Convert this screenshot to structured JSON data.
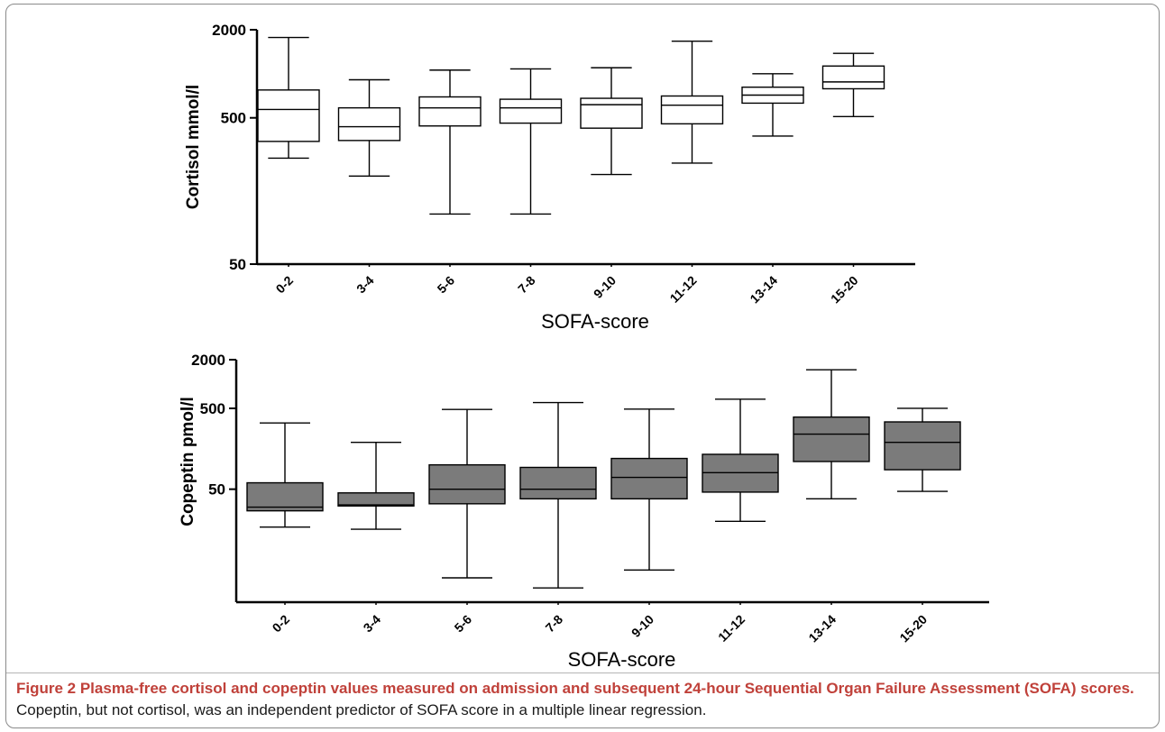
{
  "figure": {
    "caption_title": "Figure 2 Plasma-free cortisol and copeptin values measured on admission and subsequent 24-hour Sequential Organ Failure Assessment (SOFA) scores.",
    "caption_body": "Copeptin, but not cortisol, was an independent predictor of SOFA score in a multiple linear regression."
  },
  "chart_data": [
    {
      "type": "box",
      "id": "cortisol",
      "ylabel": "Cortisol mmol/l",
      "xlabel": "SOFA-score",
      "yscale": "log",
      "ylim": [
        50,
        2000
      ],
      "yticks": [
        50,
        500,
        2000
      ],
      "ytick_labels": [
        "50",
        "500",
        "2000"
      ],
      "box_fill": "#ffffff",
      "categories": [
        "0-2",
        "3-4",
        "5-6",
        "7-8",
        "9-10",
        "11-12",
        "13-14",
        "15-20"
      ],
      "boxes": [
        {
          "min": 265,
          "q1": 345,
          "median": 570,
          "q3": 775,
          "max": 1770
        },
        {
          "min": 200,
          "q1": 350,
          "median": 435,
          "q3": 585,
          "max": 910
        },
        {
          "min": 110,
          "q1": 440,
          "median": 585,
          "q3": 695,
          "max": 1060
        },
        {
          "min": 110,
          "q1": 460,
          "median": 585,
          "q3": 670,
          "max": 1080
        },
        {
          "min": 205,
          "q1": 425,
          "median": 615,
          "q3": 680,
          "max": 1100
        },
        {
          "min": 245,
          "q1": 455,
          "median": 610,
          "q3": 705,
          "max": 1670
        },
        {
          "min": 375,
          "q1": 630,
          "median": 715,
          "q3": 810,
          "max": 1000
        },
        {
          "min": 510,
          "q1": 790,
          "median": 880,
          "q3": 1130,
          "max": 1380
        }
      ]
    },
    {
      "type": "box",
      "id": "copeptin",
      "ylabel": "Copeptin pmol/l",
      "xlabel": "SOFA-score",
      "yscale": "log",
      "ylim": [
        2,
        2000
      ],
      "yticks": [
        50,
        500,
        2000
      ],
      "ytick_labels": [
        "50",
        "500",
        "2000"
      ],
      "box_fill": "#7b7b7b",
      "categories": [
        "0-2",
        "3-4",
        "5-6",
        "7-8",
        "9-10",
        "11-12",
        "13-14",
        "15-20"
      ],
      "boxes": [
        {
          "min": 17,
          "q1": 27,
          "median": 30,
          "q3": 60,
          "max": 330
        },
        {
          "min": 16,
          "q1": 31,
          "median": 32,
          "q3": 45,
          "max": 190
        },
        {
          "min": 4,
          "q1": 33,
          "median": 50,
          "q3": 100,
          "max": 485
        },
        {
          "min": 3,
          "q1": 38,
          "median": 50,
          "q3": 93,
          "max": 590
        },
        {
          "min": 5,
          "q1": 38,
          "median": 70,
          "q3": 120,
          "max": 490
        },
        {
          "min": 20,
          "q1": 46,
          "median": 80,
          "q3": 135,
          "max": 650
        },
        {
          "min": 38,
          "q1": 110,
          "median": 240,
          "q3": 390,
          "max": 1500
        },
        {
          "min": 47,
          "q1": 87,
          "median": 190,
          "q3": 340,
          "max": 500
        }
      ]
    }
  ]
}
